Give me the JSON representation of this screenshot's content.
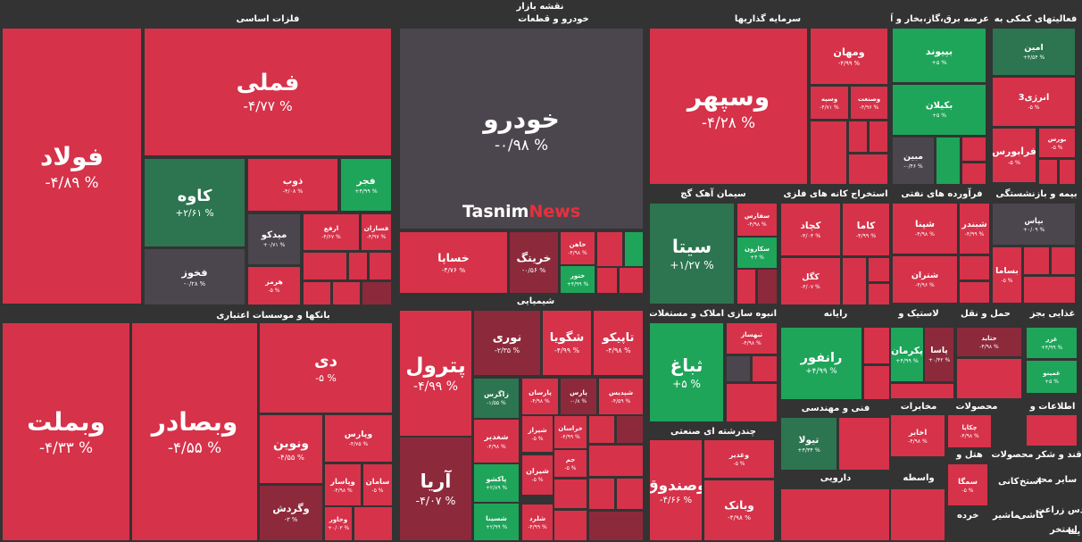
{
  "title": "نقشه بازار",
  "watermark": {
    "brand": "Tasnim",
    "suffix": "News"
  },
  "sectors": [
    {
      "title": "فلزات اساسی",
      "tiles": [
        {
          "name": "فولاد",
          "change": "-۴/۸۹ %"
        },
        {
          "name": "فملی",
          "change": "-۴/۷۷ %"
        },
        {
          "name": "کاوه",
          "change": "+۲/۶۱ %"
        },
        {
          "name": "فخوز",
          "change": "-۰/۲۸ %"
        },
        {
          "name": "ذوب",
          "change": "-۴/۰۸ %"
        },
        {
          "name": "فجر",
          "change": "+۴/۹۹ %"
        },
        {
          "name": "میدکو",
          "change": "+۰/۷۱ %"
        },
        {
          "name": "ارفع",
          "change": "-۴/۶۷ %"
        },
        {
          "name": "فسازان",
          "change": "-۴/۹۷ %"
        },
        {
          "name": "هرمز",
          "change": "-۵ %"
        }
      ]
    },
    {
      "title": "خودرو و قطعات",
      "tiles": [
        {
          "name": "خودرو",
          "change": "-۰/۹۸ %"
        },
        {
          "name": "خساپا",
          "change": "-۴/۷۶ %"
        },
        {
          "name": "خرینگ",
          "change": "-۰/۵۶ %"
        },
        {
          "name": "خاهن",
          "change": "-۴/۹۸ %"
        },
        {
          "name": "ختور",
          "change": "+۴/۹۹ %"
        }
      ]
    },
    {
      "title": "شیمیایی",
      "tiles": [
        {
          "name": "پترول",
          "change": "-۴/۹۹ %"
        },
        {
          "name": "آریا",
          "change": "-۴/۰۷ %"
        },
        {
          "name": "نوری",
          "change": "-۲/۳۵ %"
        },
        {
          "name": "شگویا",
          "change": "-۴/۹۹ %"
        },
        {
          "name": "تاپیکو",
          "change": "-۴/۹۸ %"
        },
        {
          "name": "زاگرس",
          "change": "-۱/۵۵ %"
        },
        {
          "name": "پارسان",
          "change": "-۴/۹۸ %"
        },
        {
          "name": "پارس",
          "change": "-۰/۸ %"
        },
        {
          "name": "شپدیس",
          "change": "-۴/۵۹ %"
        },
        {
          "name": "شغدیر",
          "change": "-۴/۹۸ %"
        },
        {
          "name": "شیراز",
          "change": "-۵ %"
        },
        {
          "name": "خراسان",
          "change": "-۴/۹۹ %"
        },
        {
          "name": "جم",
          "change": "-۵ %"
        },
        {
          "name": "پاکشو",
          "change": "+۲/۸۹ %"
        },
        {
          "name": "شیران",
          "change": "-۵ %"
        },
        {
          "name": "شسینا",
          "change": "+۲/۹۹ %"
        },
        {
          "name": "شلرد",
          "change": "-۴/۹۹ %"
        }
      ]
    },
    {
      "title": "سرمایه گذاریها",
      "tiles": [
        {
          "name": "وسپهر",
          "change": "-۴/۲۸ %"
        },
        {
          "name": "ومهان",
          "change": "-۴/۹۹ %"
        },
        {
          "name": "وسپه",
          "change": "-۴/۷۱ %"
        },
        {
          "name": "وصنعت",
          "change": "-۴/۹۶ %"
        }
      ]
    },
    {
      "title": "عرضه برق،گاز،بخار و آب",
      "tiles": [
        {
          "name": "بپیوند",
          "change": "+۵ %"
        },
        {
          "name": "بکیلان",
          "change": "+۵ %"
        },
        {
          "name": "مبین",
          "change": "-۰/۴۶ %"
        }
      ]
    },
    {
      "title": "فعالیتهای کمکی به",
      "tiles": [
        {
          "name": "امین",
          "change": "+۴/۵۴ %"
        },
        {
          "name": "انرژی3",
          "change": "-۵ %"
        },
        {
          "name": "فرابورس",
          "change": "-۵ %"
        },
        {
          "name": "بورس",
          "change": "-۵ %"
        }
      ]
    },
    {
      "title": "سیمان آهک گچ",
      "tiles": [
        {
          "name": "سیتا",
          "change": "+۱/۲۷ %"
        },
        {
          "name": "سفارس",
          "change": "-۴/۹۸ %"
        },
        {
          "name": "سکارون",
          "change": "+۴ %"
        }
      ]
    },
    {
      "title": "استخراج کانه های فلزی",
      "tiles": [
        {
          "name": "کچاد",
          "change": "-۴/۰۴ %"
        },
        {
          "name": "کاما",
          "change": "-۴/۹۹ %"
        },
        {
          "name": "کگل",
          "change": "-۴/۰۷ %"
        }
      ]
    },
    {
      "title": "فرآورده های نفتی",
      "tiles": [
        {
          "name": "شپنا",
          "change": "-۴/۹۸ %"
        },
        {
          "name": "شبندر",
          "change": "-۴/۹۹ %"
        },
        {
          "name": "شتران",
          "change": "-۴/۹۶ %"
        }
      ]
    },
    {
      "title": "بیمه و بازنشستگی",
      "tiles": [
        {
          "name": "بپاس",
          "change": "+۰/۰۹ %"
        },
        {
          "name": "بساما",
          "change": "-۵ %"
        }
      ]
    },
    {
      "title": "انبوه سازی املاک و مستغلات",
      "tiles": [
        {
          "name": "ثباغ",
          "change": "+۵ %"
        },
        {
          "name": "ثبهساز",
          "change": "-۴/۹۸ %"
        }
      ]
    },
    {
      "title": "رایانه",
      "tiles": [
        {
          "name": "رانفور",
          "change": "+۴/۹۹ %"
        }
      ]
    },
    {
      "title": "لاستیک و",
      "tiles": [
        {
          "name": "پکرمان",
          "change": "+۴/۹۹ %"
        },
        {
          "name": "پاسا",
          "change": "+۰/۴۲ %"
        }
      ]
    },
    {
      "title": "حمل و نقل",
      "tiles": [
        {
          "name": "حتاید",
          "change": "-۴/۹۸ %"
        }
      ]
    },
    {
      "title": "غذایی بجز",
      "tiles": [
        {
          "name": "غزر",
          "change": "+۴/۹۹ %"
        },
        {
          "name": "غمینو",
          "change": "+۵ %"
        }
      ]
    },
    {
      "title": "فنی و مهندسی",
      "tiles": [
        {
          "name": "تیولا",
          "change": "+۴/۳۴ %"
        }
      ]
    },
    {
      "title": "چندرشته ای صنعتی",
      "tiles": [
        {
          "name": "وصندوق",
          "change": "-۴/۶۶ %"
        },
        {
          "name": "وغدیر",
          "change": "-۵ %"
        },
        {
          "name": "وبانک",
          "change": "-۴/۹۸ %"
        }
      ]
    },
    {
      "title": "مخابرات",
      "tiles": [
        {
          "name": "اخابر",
          "change": "-۴/۹۸ %"
        }
      ]
    },
    {
      "title": "محصولات",
      "tiles": [
        {
          "name": "چکاپا",
          "change": "-۴/۹۸ %"
        }
      ]
    },
    {
      "title": "اطلاعات و",
      "tiles": []
    },
    {
      "title": "دارویی",
      "tiles": []
    },
    {
      "title": "واسطه",
      "tiles": []
    },
    {
      "title": "هتل و",
      "tiles": [
        {
          "name": "سمگا",
          "change": "-۵ %"
        }
      ]
    },
    {
      "title": "قند و شکر",
      "tiles": []
    },
    {
      "title": "محصولات",
      "tiles": []
    },
    {
      "title": "بانکها و موسسات اعتباری",
      "tiles": [
        {
          "name": "وبملت",
          "change": "-۴/۳۳ %"
        },
        {
          "name": "وبصادر",
          "change": "-۴/۵۵ %"
        },
        {
          "name": "دی",
          "change": "-۵ %"
        },
        {
          "name": "ونوین",
          "change": "-۴/۵۵ %"
        },
        {
          "name": "وپارس",
          "change": "-۴/۷۵ %"
        },
        {
          "name": "وپاسار",
          "change": "-۴/۹۸ %"
        },
        {
          "name": "سامان",
          "change": "-۵ %"
        },
        {
          "name": "وگردش",
          "change": "-۳ %"
        },
        {
          "name": "وخاور",
          "change": "+۰/۰۳ %"
        }
      ]
    }
  ],
  "minor_labels": [
    "سایر محد",
    "استخ",
    "کانی",
    "دس",
    "زراعت",
    "کاشی",
    "ماشیر",
    "استخر",
    "خرده",
    "یما"
  ]
}
